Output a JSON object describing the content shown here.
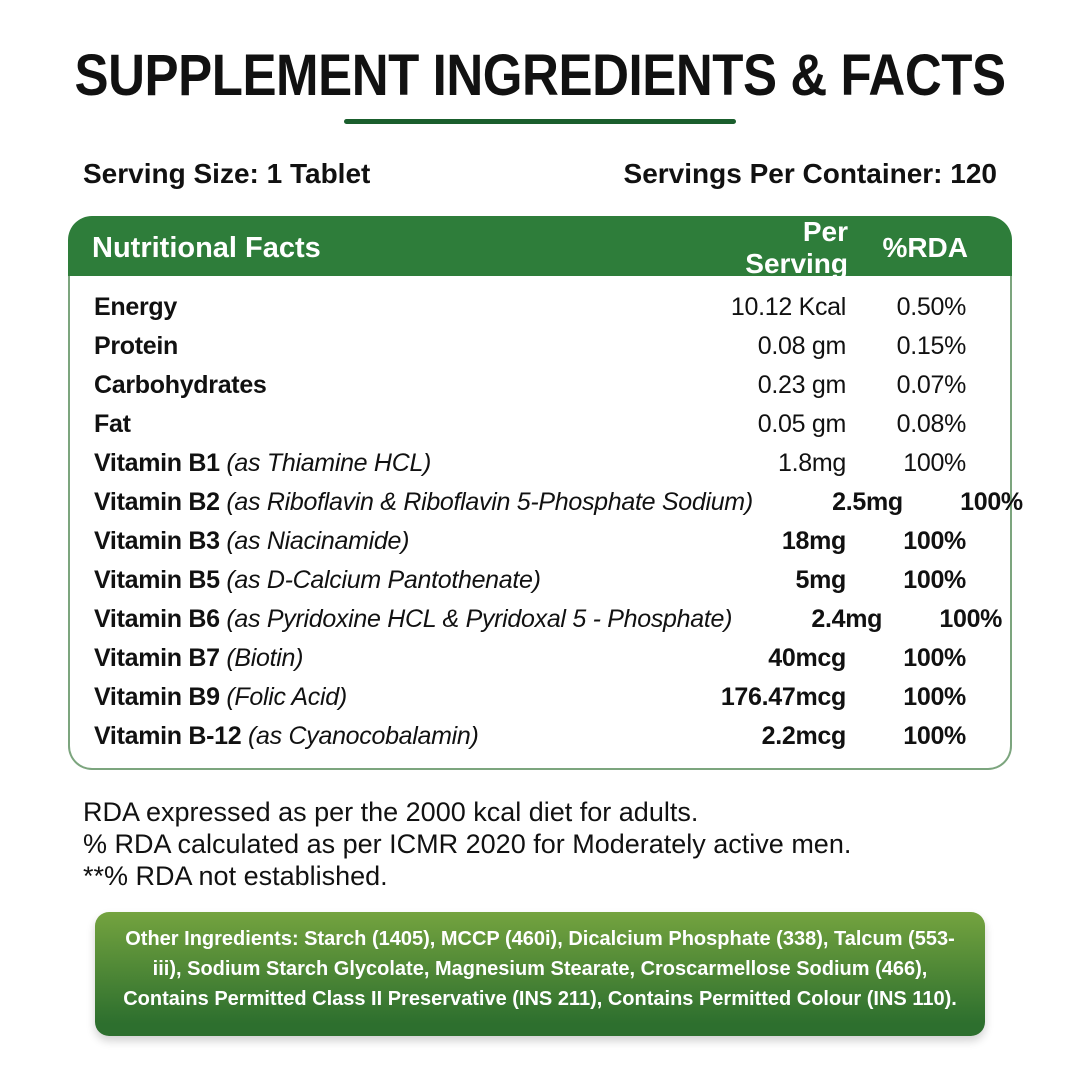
{
  "page": {
    "title": "SUPPLEMENT INGREDIENTS & FACTS",
    "serving_size_label": "Serving Size: 1 Tablet",
    "servings_per_container_label": "Servings Per Container: 120"
  },
  "table": {
    "headers": {
      "name": "Nutritional Facts",
      "per_serving": "Per Serving",
      "rda": "%RDA"
    },
    "rows": [
      {
        "name": "Energy",
        "detail": "",
        "per_serving": "10.12 Kcal",
        "rda": "0.50%",
        "bold_values": false
      },
      {
        "name": "Protein",
        "detail": "",
        "per_serving": "0.08 gm",
        "rda": "0.15%",
        "bold_values": false
      },
      {
        "name": "Carbohydrates",
        "detail": "",
        "per_serving": "0.23 gm",
        "rda": "0.07%",
        "bold_values": false
      },
      {
        "name": "Fat",
        "detail": "",
        "per_serving": "0.05 gm",
        "rda": "0.08%",
        "bold_values": false
      },
      {
        "name": "Vitamin B1",
        "detail": "(as Thiamine HCL)",
        "per_serving": "1.8mg",
        "rda": "100%",
        "bold_values": false
      },
      {
        "name": "Vitamin B2",
        "detail": "(as Riboflavin & Riboflavin 5-Phosphate Sodium)",
        "per_serving": "2.5mg",
        "rda": "100%",
        "bold_values": true
      },
      {
        "name": "Vitamin B3",
        "detail": "(as Niacinamide)",
        "per_serving": "18mg",
        "rda": "100%",
        "bold_values": true
      },
      {
        "name": "Vitamin B5",
        "detail": "(as D-Calcium Pantothenate)",
        "per_serving": "5mg",
        "rda": "100%",
        "bold_values": true
      },
      {
        "name": "Vitamin B6",
        "detail": "(as Pyridoxine HCL & Pyridoxal 5 - Phosphate)",
        "per_serving": "2.4mg",
        "rda": "100%",
        "bold_values": true
      },
      {
        "name": "Vitamin B7",
        "detail": "(Biotin)",
        "per_serving": "40mcg",
        "rda": "100%",
        "bold_values": true
      },
      {
        "name": "Vitamin B9",
        "detail": "(Folic Acid)",
        "per_serving": "176.47mcg",
        "rda": "100%",
        "bold_values": true
      },
      {
        "name": "Vitamin B-12",
        "detail": "(as Cyanocobalamin)",
        "per_serving": "2.2mcg",
        "rda": "100%",
        "bold_values": true
      }
    ]
  },
  "footnotes": [
    "RDA expressed as per the 2000 kcal diet for adults.",
    "% RDA calculated as per ICMR 2020 for Moderately active men.",
    "**% RDA not established."
  ],
  "other_ingredients": "Other Ingredients: Starch (1405), MCCP (460i), Dicalcium Phosphate (338), Talcum (553-iii), Sodium Starch Glycolate, Magnesium Stearate, Croscarmellose Sodium (466), Contains Permitted Class II Preservative (INS 211), Contains Permitted Colour (INS 110).",
  "colors": {
    "header_green": "#2e7d3a",
    "border_green": "#7ca57e",
    "underline_green": "#1a5e2d",
    "box_gradient_top": "#74a33f",
    "box_gradient_bottom": "#2d6f2e"
  }
}
